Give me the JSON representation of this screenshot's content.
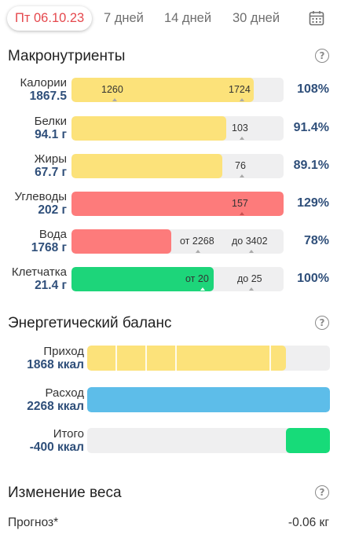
{
  "tabs": {
    "active": "Пт 06.10.23",
    "items": [
      "7 дней",
      "14 дней",
      "30 дней"
    ]
  },
  "macros": {
    "title": "Макронутриенты",
    "rows": [
      {
        "label": "Калории",
        "value": "1867.5",
        "percent": "108%",
        "fill_color": "#fce27a",
        "fill_fraction": 0.86,
        "mark_left": "1260",
        "mark_right": "1724"
      },
      {
        "label": "Белки",
        "value": "94.1 г",
        "percent": "91.4%",
        "fill_color": "#fce27a",
        "fill_fraction": 0.73,
        "mark_left": "",
        "mark_right": "103"
      },
      {
        "label": "Жиры",
        "value": "67.7 г",
        "percent": "89.1%",
        "fill_color": "#fce27a",
        "fill_fraction": 0.71,
        "mark_left": "",
        "mark_right": "76"
      },
      {
        "label": "Углеводы",
        "value": "202 г",
        "percent": "129%",
        "fill_color": "#fd7b7b",
        "fill_fraction": 1.0,
        "mark_left": "",
        "mark_right": "157"
      },
      {
        "label": "Вода",
        "value": "1768 г",
        "percent": "78%",
        "fill_color": "#fd7b7b",
        "fill_fraction": 0.47,
        "mark_left": "от 2268",
        "mark_right": "до 3402"
      },
      {
        "label": "Клетчатка",
        "value": "21.4 г",
        "percent": "100%",
        "fill_color": "#1dd57a",
        "fill_fraction": 0.67,
        "mark_left": "от 20",
        "mark_right": "до 25"
      }
    ]
  },
  "energy": {
    "title": "Энергетический баланс",
    "rows": [
      {
        "label": "Приход",
        "value": "1868 ккал",
        "fill_color": "#fce27a",
        "fill_fraction": 0.82
      },
      {
        "label": "Расход",
        "value": "2268 ккал",
        "fill_color": "#5dbde9",
        "fill_fraction": 1.0
      },
      {
        "label": "Итого",
        "value": "-400 ккал",
        "fill_color": "#17db79",
        "fill_fraction": 0.18
      }
    ]
  },
  "weight": {
    "title": "Изменение веса",
    "forecast_label": "Прогноз*",
    "forecast_value": "-0.06 кг"
  },
  "icons": {
    "calendar": "calendar-icon",
    "help": "help-icon"
  }
}
